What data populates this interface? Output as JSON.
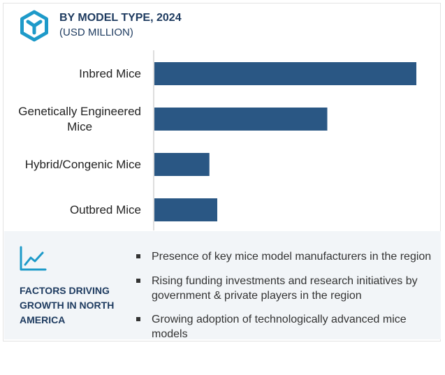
{
  "header": {
    "title": "BY MODEL TYPE, 2024",
    "subtitle": "(USD MILLION)",
    "icon": "hexagon-logo-icon"
  },
  "chart_data": {
    "type": "bar",
    "orientation": "horizontal",
    "title": "BY MODEL TYPE, 2024",
    "subtitle": "(USD MILLION)",
    "categories": [
      "Inbred Mice",
      "Genetically Engineered Mice",
      "Hybrid/Congenic Mice",
      "Outbred Mice"
    ],
    "category_label_lines": [
      [
        "Inbred Mice"
      ],
      [
        "Genetically Engineered",
        "Mice"
      ],
      [
        "Hybrid/Congenic Mice"
      ],
      [
        "Outbred Mice"
      ]
    ],
    "values": [
      100,
      66,
      21,
      24
    ],
    "xlim": [
      0,
      100
    ],
    "grid": false,
    "bar_color": "#2a5784"
  },
  "factors": {
    "icon": "trend-chart-icon",
    "title": "FACTORS DRIVING GROWTH IN NORTH AMERICA",
    "items": [
      "Presence of key mice model manufacturers in the region",
      "Rising funding investments and research initiatives by government & private players in the region",
      "Growing adoption of technologically advanced mice models"
    ]
  },
  "colors": {
    "accent": "#1e9ac9",
    "title": "#1d3a5f",
    "bar": "#2a5784",
    "panel": "#f2f5f8"
  }
}
